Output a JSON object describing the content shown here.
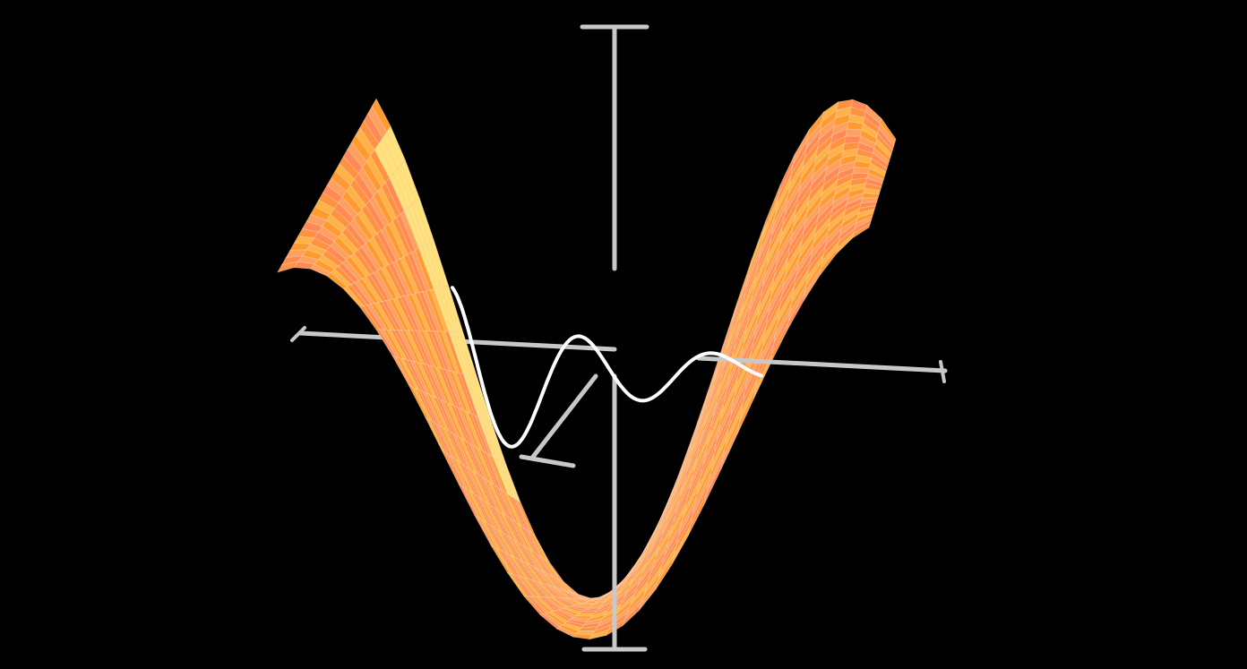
{
  "scene": {
    "background": "#000000",
    "surface_colors": [
      "#ff9a2e",
      "#ff8a55",
      "#ffb347",
      "#ffa060",
      "#ff9240"
    ],
    "highlight_color": "#ffe27a",
    "grid_line_color": "#ffd0a8",
    "curve_color": "#ffffff",
    "axis_color": "#c8c8c8",
    "surface_rows": 24,
    "surface_cols": 36
  }
}
